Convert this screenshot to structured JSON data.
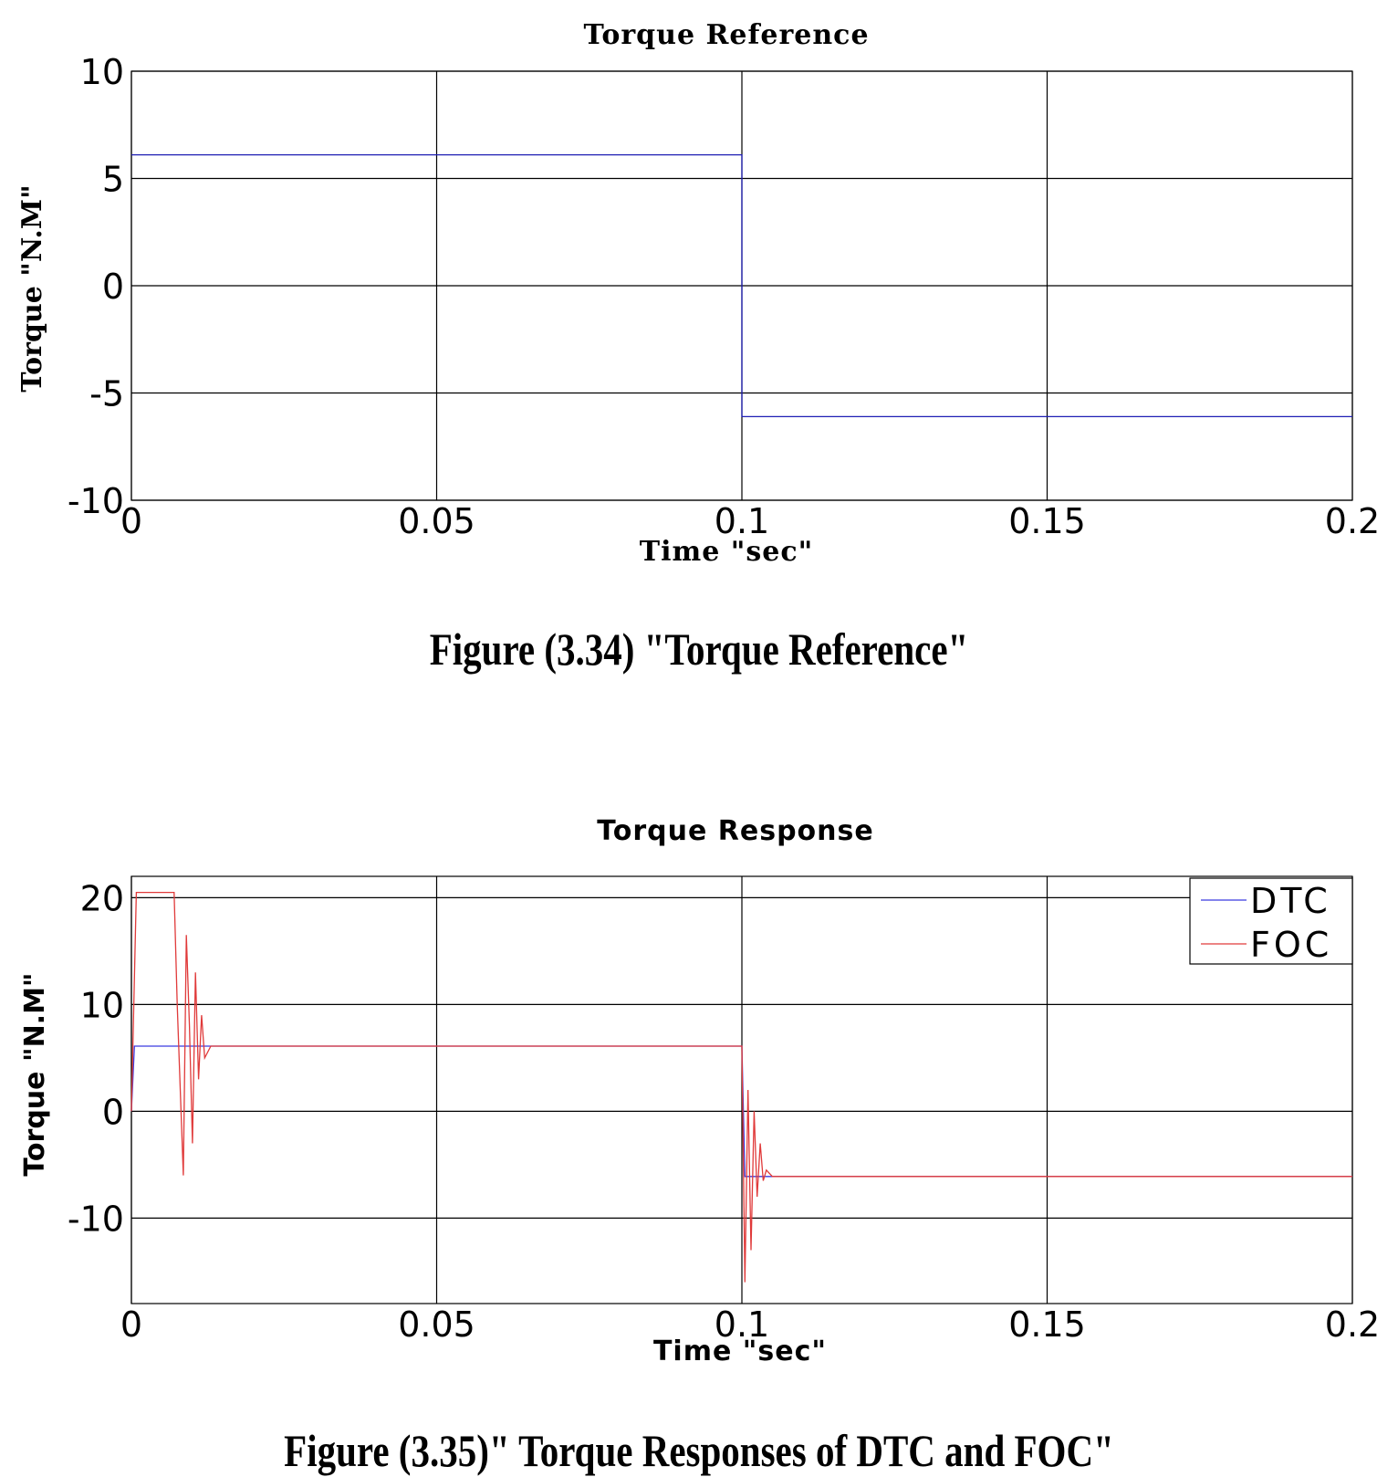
{
  "chart_data": [
    {
      "type": "line",
      "title": "Torque Reference",
      "xlabel": "Time \"sec\"",
      "ylabel": "Torque \"N.M\"",
      "xlim": [
        0,
        0.2
      ],
      "ylim": [
        -10,
        10
      ],
      "xticks": [
        "0",
        "0.05",
        "0.1",
        "0.15",
        "0.2"
      ],
      "yticks": [
        "10",
        "5",
        "0",
        "-5",
        "-10"
      ],
      "grid": true,
      "series": [
        {
          "color": "#1f1fb4",
          "x": [
            0,
            0.1,
            0.1,
            0.2
          ],
          "y": [
            6.1,
            6.1,
            -6.1,
            -6.1
          ]
        }
      ]
    },
    {
      "type": "line",
      "title": "Torque Response",
      "xlabel": "Time \"sec\"",
      "ylabel": "Torque \"N.M\"",
      "xlim": [
        0,
        0.2
      ],
      "ylim": [
        -18,
        22
      ],
      "xticks": [
        "0",
        "0.05",
        "0.1",
        "0.15",
        "0.2"
      ],
      "yticks": [
        "20",
        "10",
        "0",
        "-10"
      ],
      "grid": true,
      "legend": "top-right",
      "series": [
        {
          "name": "DTC",
          "color": "#3a3ae0",
          "x": [
            0,
            0.0005,
            0.002,
            0.1,
            0.1005,
            0.102,
            0.2
          ],
          "y": [
            0,
            6.1,
            6.1,
            6.1,
            -6.1,
            -6.1,
            -6.1
          ]
        },
        {
          "name": "FOC",
          "color": "#e03a3a",
          "x": [
            0,
            0.0008,
            0.001,
            0.007,
            0.0075,
            0.0085,
            0.009,
            0.0095,
            0.01,
            0.0105,
            0.011,
            0.0115,
            0.012,
            0.013,
            0.1,
            0.1005,
            0.101,
            0.1015,
            0.102,
            0.1025,
            0.103,
            0.1035,
            0.104,
            0.105,
            0.2
          ],
          "y": [
            0,
            20.5,
            20.5,
            20.5,
            10,
            -6,
            16.5,
            8,
            -3,
            13,
            3,
            9,
            5,
            6.1,
            6.1,
            -16,
            2,
            -13,
            0,
            -8,
            -3,
            -6.5,
            -5.5,
            -6.1,
            -6.1
          ]
        }
      ]
    }
  ],
  "captions": {
    "fig1": "Figure (3.34) \"Torque Reference\"",
    "fig2": "Figure (3.35)\" Torque Responses of DTC and FOC\""
  }
}
